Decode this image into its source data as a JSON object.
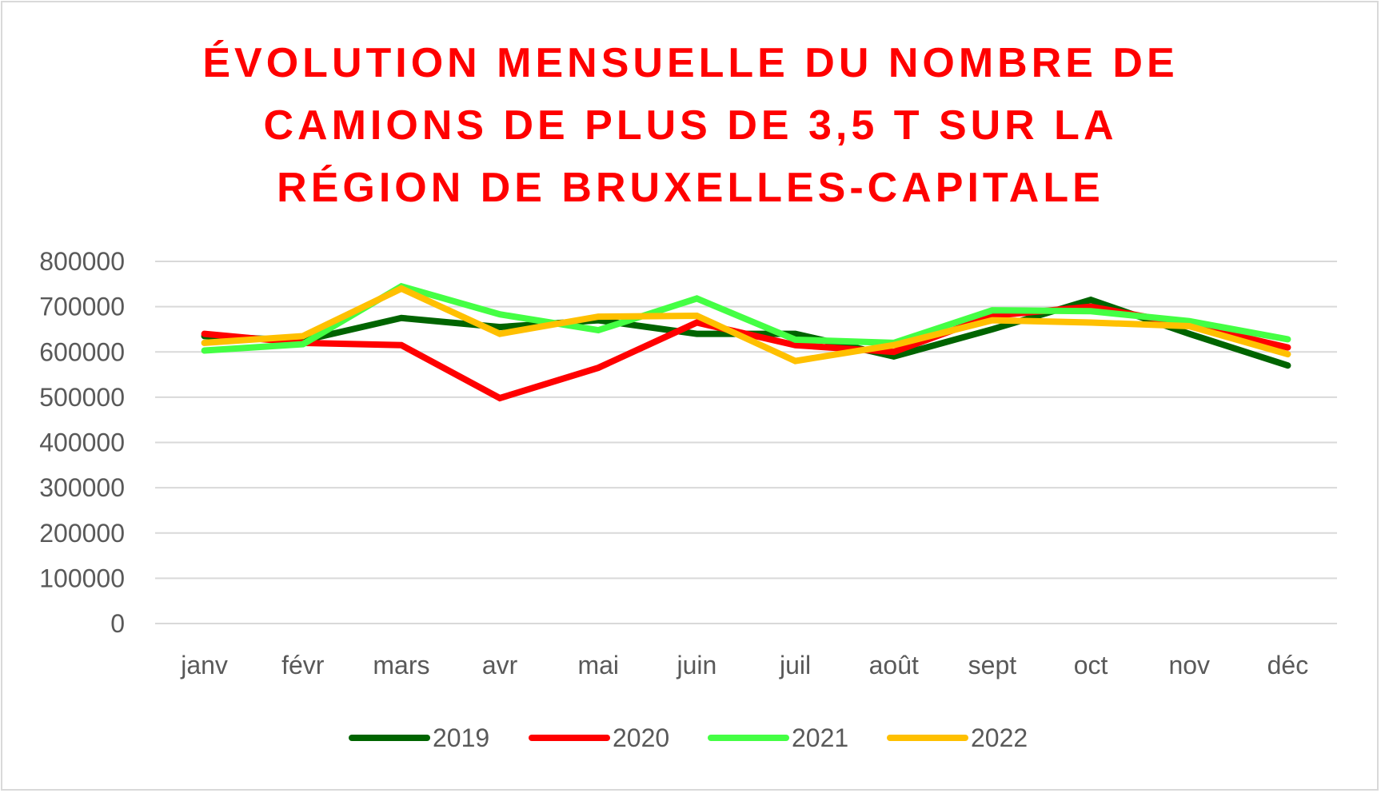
{
  "chart_data": {
    "type": "line",
    "title_lines": [
      "ÉVOLUTION MENSUELLE DU NOMBRE DE",
      "CAMIONS DE PLUS DE 3,5 T SUR LA",
      "RÉGION DE BRUXELLES-CAPITALE"
    ],
    "categories": [
      "janv",
      "févr",
      "mars",
      "avr",
      "mai",
      "juin",
      "juil",
      "août",
      "sept",
      "oct",
      "nov",
      "déc"
    ],
    "ylim": [
      0,
      800000
    ],
    "yticks": [
      "0",
      "100000",
      "200000",
      "300000",
      "400000",
      "500000",
      "600000",
      "700000",
      "800000"
    ],
    "grid": true,
    "legend_position": "bottom",
    "series": [
      {
        "name": "2019",
        "color": "#006400",
        "values": [
          635000,
          625000,
          675000,
          655000,
          670000,
          640000,
          640000,
          590000,
          650000,
          715000,
          640000,
          570000
        ]
      },
      {
        "name": "2020",
        "color": "#ff0000",
        "values": [
          640000,
          620000,
          615000,
          498000,
          565000,
          665000,
          615000,
          600000,
          680000,
          700000,
          660000,
          610000
        ]
      },
      {
        "name": "2021",
        "color": "#44ff44",
        "values": [
          603000,
          617000,
          745000,
          683000,
          648000,
          718000,
          627000,
          620000,
          692000,
          690000,
          668000,
          628000
        ]
      },
      {
        "name": "2022",
        "color": "#ffc000",
        "values": [
          620000,
          635000,
          740000,
          640000,
          678000,
          680000,
          580000,
          615000,
          670000,
          665000,
          657000,
          595000
        ]
      }
    ]
  }
}
